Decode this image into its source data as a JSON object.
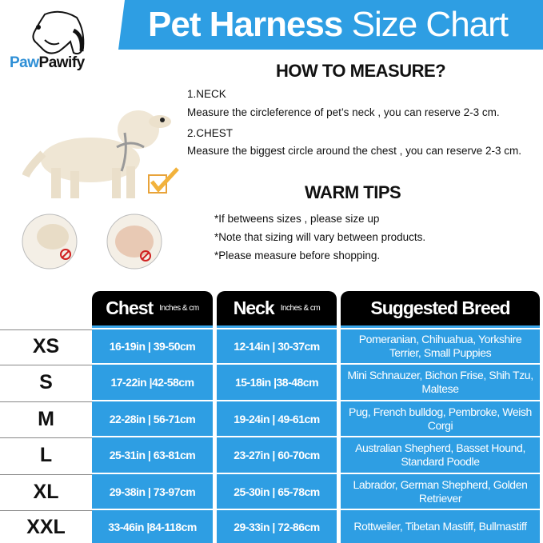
{
  "brand": {
    "logo_part1": "Paw",
    "logo_part2": "Pawify",
    "accent": "#2e9ee3"
  },
  "banner": {
    "title_bold": "Pet Harness",
    "title_light": "Size Chart"
  },
  "how_to_measure": {
    "heading": "HOW TO MEASURE?",
    "items": [
      {
        "label": "1.NECK",
        "text": "Measure the circleference of pet’s neck , you can reserve 2-3 cm."
      },
      {
        "label": "2.CHEST",
        "text": "Measure the biggest circle around the chest , you can reserve 2-3 cm."
      }
    ]
  },
  "warm_tips": {
    "heading": "WARM TIPS",
    "items": [
      "*If betweens sizes , please size up",
      "*Note that sizing will vary between products.",
      "*Please measure before shopping."
    ]
  },
  "table": {
    "headers": [
      {
        "title": "Chest",
        "unit": "Inches & cm"
      },
      {
        "title": "Neck",
        "unit": "Inches & cm"
      },
      {
        "title": "Suggested Breed",
        "unit": ""
      }
    ],
    "rows": [
      {
        "size": "XS",
        "chest": "16-19in | 39-50cm",
        "neck": "12-14in | 30-37cm",
        "breed": "Pomeranian,  Chihuahua, Yorkshire Terrier,  Small Puppies"
      },
      {
        "size": "S",
        "chest": "17-22in |42-58cm",
        "neck": "15-18in |38-48cm",
        "breed": "Mini Schnauzer,  Bichon Frise, Shih Tzu,  Maltese"
      },
      {
        "size": "M",
        "chest": "22-28in | 56-71cm",
        "neck": "19-24in | 49-61cm",
        "breed": "Pug,  French bulldog,  Pembroke, Weish Corgi"
      },
      {
        "size": "L",
        "chest": "25-31in | 63-81cm",
        "neck": "23-27in | 60-70cm",
        "breed": "Australian Shepherd,  Basset Hound,  Standard Poodle"
      },
      {
        "size": "XL",
        "chest": "29-38in | 73-97cm",
        "neck": "25-30in | 65-78cm",
        "breed": "Labrador,  German Shepherd, Golden Retriever"
      },
      {
        "size": "XXL",
        "chest": "33-46in |84-118cm",
        "neck": "29-33in | 72-86cm",
        "breed": "Rottweiler,  Tibetan Mastiff, Bullmastiff"
      }
    ]
  }
}
